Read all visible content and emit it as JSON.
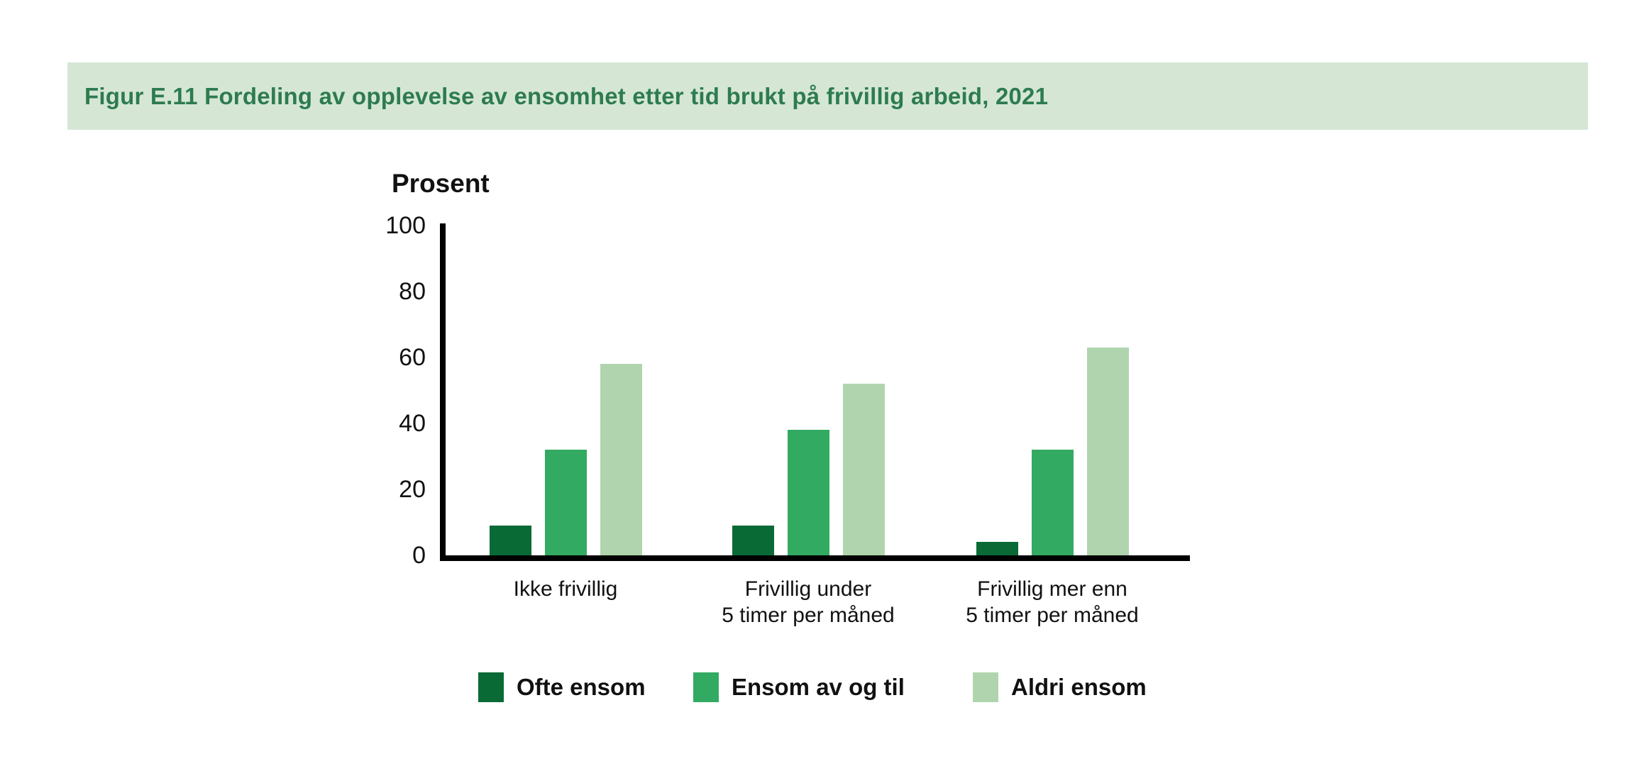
{
  "header": {
    "title": "Figur E.11 Fordeling av opplevelse av ensomhet etter tid brukt på frivillig arbeid, 2021"
  },
  "chart_data": {
    "type": "bar",
    "title": "Figur E.11 Fordeling av opplevelse av ensomhet etter tid brukt på frivillig arbeid, 2021",
    "ylabel": "Prosent",
    "xlabel": "",
    "ylim": [
      0,
      100
    ],
    "yticks": [
      0,
      20,
      40,
      60,
      80,
      100
    ],
    "grid": false,
    "legend_position": "bottom",
    "categories": [
      "Ikke frivillig",
      "Frivillig under\n5 timer per måned",
      "Frivillig mer enn\n5 timer per måned"
    ],
    "series": [
      {
        "name": "Ofte ensom",
        "color": "#0a6a36",
        "values": [
          9,
          9,
          4
        ]
      },
      {
        "name": "Ensom av og til",
        "color": "#33aa62",
        "values": [
          32,
          38,
          32
        ]
      },
      {
        "name": "Aldri ensom",
        "color": "#b0d5ae",
        "values": [
          58,
          52,
          63
        ]
      }
    ]
  },
  "colors": {
    "banner_background": "#d5e7d4",
    "title_text": "#2e7b50",
    "axis": "#000000"
  }
}
